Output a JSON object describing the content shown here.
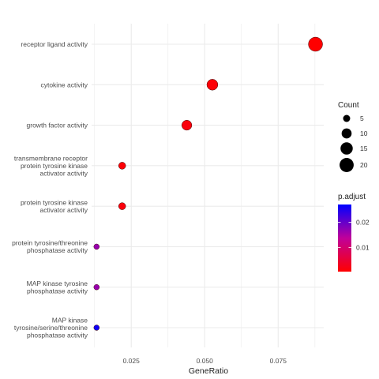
{
  "chart_data": {
    "type": "scatter",
    "title": "",
    "xlabel": "GeneRatio",
    "ylabel": "",
    "xlim": [
      0.0115,
      0.0905
    ],
    "xticks": [
      0.025,
      0.05,
      0.075
    ],
    "xtick_labels": [
      "0.025",
      "0.050",
      "0.075"
    ],
    "grid": true,
    "legend_placement": "right",
    "points": [
      {
        "term": "receptor ligand activity",
        "gene_ratio": 0.0877,
        "count": 20,
        "p_adjust": 0.0005
      },
      {
        "term": "cytokine activity",
        "gene_ratio": 0.0526,
        "count": 12,
        "p_adjust": 0.001
      },
      {
        "term": "growth factor activity",
        "gene_ratio": 0.0439,
        "count": 10,
        "p_adjust": 0.0015
      },
      {
        "term": "transmembrane receptor\nprotein tyrosine kinase\nactivator activity",
        "gene_ratio": 0.0219,
        "count": 5,
        "p_adjust": 0.001
      },
      {
        "term": "protein tyrosine kinase\nactivator activity",
        "gene_ratio": 0.0219,
        "count": 5,
        "p_adjust": 0.0015
      },
      {
        "term": "protein tyrosine/threonine\nphosphatase activity",
        "gene_ratio": 0.0132,
        "count": 3,
        "p_adjust": 0.0165
      },
      {
        "term": "MAP kinase tyrosine\nphosphatase activity",
        "gene_ratio": 0.0132,
        "count": 3,
        "p_adjust": 0.0165
      },
      {
        "term": "MAP kinase\ntyrosine/serine/threonine\nphosphatase activity",
        "gene_ratio": 0.0132,
        "count": 3,
        "p_adjust": 0.026
      }
    ],
    "size_legend": {
      "title": "Count",
      "values": [
        5,
        10,
        15,
        20
      ],
      "labels": [
        "5",
        "10",
        "15",
        "20"
      ]
    },
    "color_legend": {
      "title": "p.adjust",
      "range": [
        0.0005,
        0.027
      ],
      "ticks": [
        0.01,
        0.02
      ],
      "tick_labels": [
        "0.01",
        "0.02"
      ],
      "low_color": "#ff0000",
      "mid_color": "#c0009a",
      "high_color": "#0000ff"
    },
    "grid_color": "#ebebeb",
    "point_stroke": "#3a0000"
  }
}
